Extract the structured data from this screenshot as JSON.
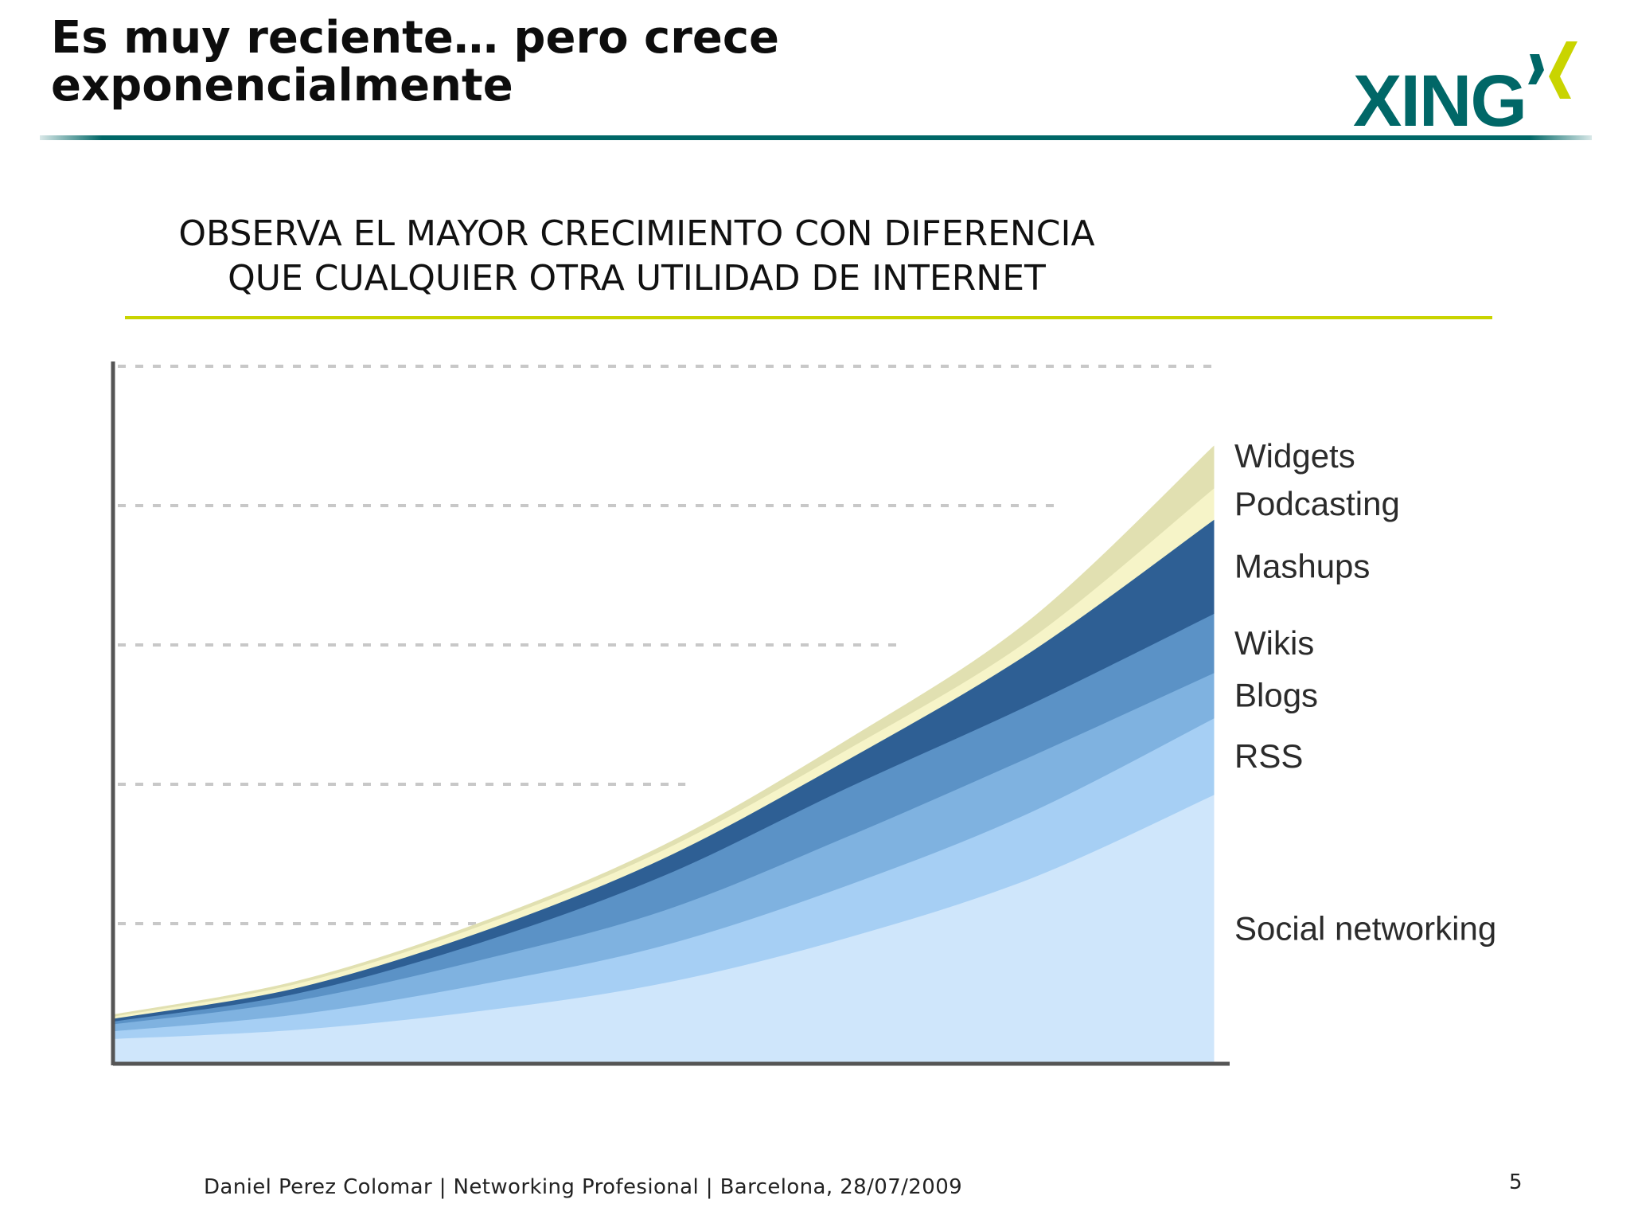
{
  "slide": {
    "title_lines": [
      "Es muy reciente… pero crece",
      "exponencialmente"
    ],
    "logo_text": "XING",
    "subtitle_lines": [
      "OBSERVA EL MAYOR CRECIMIENTO CON DIFERENCIA",
      "QUE CUALQUIER OTRA UTILIDAD DE INTERNET"
    ],
    "footer": "Daniel Perez Colomar | Networking Profesional | Barcelona, 28/07/2009",
    "page_number": "5"
  },
  "colors": {
    "title": "#0d0d0d",
    "logo_teal": "#006767",
    "logo_lime": "#c9d400",
    "header_rule": "#006767",
    "subtitle_rule": "#c9d400",
    "axis": "#555555",
    "grid": "#c8c8c8"
  },
  "chart_data": {
    "type": "area",
    "stacked": true,
    "x": [
      0,
      1,
      2,
      3,
      4,
      5,
      6
    ],
    "ylim": [
      0,
      100
    ],
    "grid": true,
    "gridlines_y": [
      20,
      40,
      60,
      80,
      100
    ],
    "legend_position": "right",
    "series": [
      {
        "name": "Social networking",
        "color": "#cfe6fb",
        "values": [
          3.5,
          4.8,
          7.5,
          11.5,
          18,
          26.5,
          38.5
        ]
      },
      {
        "name": "RSS",
        "color": "#a6cff4",
        "values": [
          1.1,
          2.2,
          3.8,
          5.4,
          7.5,
          9.5,
          11
        ]
      },
      {
        "name": "Blogs",
        "color": "#7fb2e0",
        "values": [
          1,
          2,
          3.5,
          5,
          7,
          8,
          6.5
        ]
      },
      {
        "name": "Wikis",
        "color": "#5b92c6",
        "values": [
          0.4,
          1,
          2.5,
          5,
          7,
          7.5,
          8.5
        ]
      },
      {
        "name": "Mashups",
        "color": "#2e5f94",
        "values": [
          0.4,
          0.8,
          1.5,
          2.5,
          4,
          7.5,
          13.5
        ]
      },
      {
        "name": "Podcasting",
        "color": "#f6f4c8",
        "values": [
          0.3,
          0.6,
          0.9,
          1.2,
          1.5,
          1.9,
          4.5
        ]
      },
      {
        "name": "Widgets",
        "color": "#e1e0b1",
        "values": [
          0.2,
          0.3,
          0.4,
          0.6,
          1.3,
          2.7,
          6
        ]
      }
    ]
  }
}
